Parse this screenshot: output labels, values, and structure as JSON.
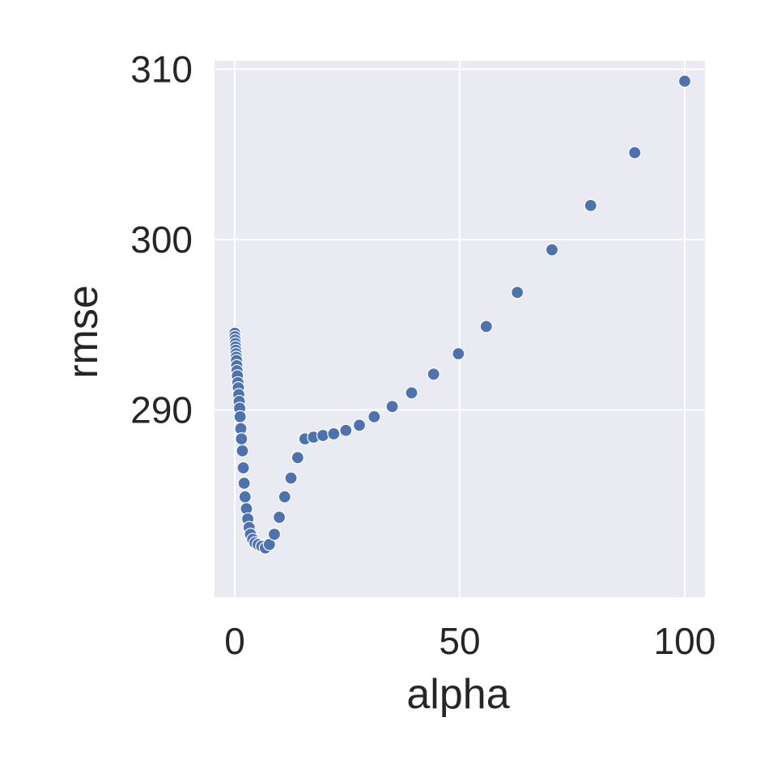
{
  "chart_data": {
    "type": "scatter",
    "title": "",
    "xlabel": "alpha",
    "ylabel": "rmse",
    "xlim": [
      -4.5,
      104.5
    ],
    "ylim": [
      279,
      310.5
    ],
    "x_ticks": [
      0,
      50,
      100
    ],
    "y_ticks": [
      290,
      300,
      310
    ],
    "x_tick_labels": [
      "0",
      "50",
      "100"
    ],
    "y_tick_labels": [
      "290",
      "300",
      "310"
    ],
    "grid": true,
    "legend": "none",
    "colors": {
      "points": "#4c72b0",
      "background": "#eaeaf2",
      "grid": "#ffffff",
      "text": "#262626"
    },
    "series": [
      {
        "points": [
          {
            "x": 0.01,
            "y": 294.5
          },
          {
            "x": 0.05,
            "y": 294.3
          },
          {
            "x": 0.1,
            "y": 294.1
          },
          {
            "x": 0.15,
            "y": 293.9
          },
          {
            "x": 0.2,
            "y": 293.7
          },
          {
            "x": 0.25,
            "y": 293.5
          },
          {
            "x": 0.3,
            "y": 293.3
          },
          {
            "x": 0.35,
            "y": 293.1
          },
          {
            "x": 0.4,
            "y": 292.9
          },
          {
            "x": 0.45,
            "y": 292.6
          },
          {
            "x": 0.5,
            "y": 292.3
          },
          {
            "x": 0.6,
            "y": 292.0
          },
          {
            "x": 0.7,
            "y": 291.6
          },
          {
            "x": 0.8,
            "y": 291.3
          },
          {
            "x": 0.9,
            "y": 290.9
          },
          {
            "x": 1.0,
            "y": 290.5
          },
          {
            "x": 1.1,
            "y": 290.1
          },
          {
            "x": 1.2,
            "y": 289.6
          },
          {
            "x": 1.35,
            "y": 288.9
          },
          {
            "x": 1.5,
            "y": 288.3
          },
          {
            "x": 1.7,
            "y": 287.6
          },
          {
            "x": 1.9,
            "y": 286.6
          },
          {
            "x": 2.1,
            "y": 285.7
          },
          {
            "x": 2.3,
            "y": 284.9
          },
          {
            "x": 2.6,
            "y": 284.2
          },
          {
            "x": 2.9,
            "y": 283.6
          },
          {
            "x": 3.2,
            "y": 283.1
          },
          {
            "x": 3.5,
            "y": 282.7
          },
          {
            "x": 4.0,
            "y": 282.4
          },
          {
            "x": 4.5,
            "y": 282.2
          },
          {
            "x": 5.2,
            "y": 282.1
          },
          {
            "x": 6.0,
            "y": 282.0
          },
          {
            "x": 6.8,
            "y": 281.9
          },
          {
            "x": 7.7,
            "y": 282.1
          },
          {
            "x": 8.8,
            "y": 282.7
          },
          {
            "x": 9.9,
            "y": 283.7
          },
          {
            "x": 11.1,
            "y": 284.9
          },
          {
            "x": 12.5,
            "y": 286.0
          },
          {
            "x": 14.0,
            "y": 287.2
          },
          {
            "x": 15.6,
            "y": 288.3
          },
          {
            "x": 17.5,
            "y": 288.4
          },
          {
            "x": 19.6,
            "y": 288.5
          },
          {
            "x": 22.0,
            "y": 288.6
          },
          {
            "x": 24.7,
            "y": 288.8
          },
          {
            "x": 27.7,
            "y": 289.1
          },
          {
            "x": 31.0,
            "y": 289.6
          },
          {
            "x": 35.0,
            "y": 290.2
          },
          {
            "x": 39.3,
            "y": 291.0
          },
          {
            "x": 44.2,
            "y": 292.1
          },
          {
            "x": 49.7,
            "y": 293.3
          },
          {
            "x": 55.9,
            "y": 294.9
          },
          {
            "x": 62.8,
            "y": 296.9
          },
          {
            "x": 70.5,
            "y": 299.4
          },
          {
            "x": 79.1,
            "y": 302.0
          },
          {
            "x": 88.9,
            "y": 305.1
          },
          {
            "x": 100.0,
            "y": 309.3
          }
        ]
      }
    ]
  }
}
